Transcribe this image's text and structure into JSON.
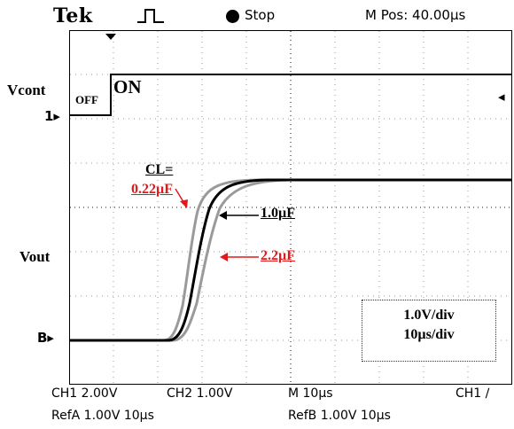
{
  "header": {
    "brand": "Tek",
    "acq_state": "Stop",
    "m_pos": "M Pos: 40.00µs"
  },
  "labels": {
    "vcont": "Vcont",
    "vout": "Vout",
    "ch1_marker": "1▸",
    "ref_marker": "B▸",
    "trigger_level_marker": "◂",
    "off": "OFF",
    "on": "ON",
    "cl_heading": "CL=",
    "cap_022": "0.22µF",
    "cap_10": "1.0µF",
    "cap_22": "2.2µF"
  },
  "scale_box": {
    "volts_per_div": "1.0V/div",
    "time_per_div": "10µs/div"
  },
  "readout": {
    "ch1": "CH1  2.00V",
    "ch2": "CH2  1.00V",
    "m": "M 10µs",
    "trigger": "CH1  ∕",
    "ref_a": "RefA  1.00V  10µs",
    "ref_b": "RefB  1.00V  10µs"
  },
  "colors": {
    "annotation_red": "#e01a1a",
    "trace_main": "#000000",
    "trace_ref": "#9a9a9a"
  }
}
